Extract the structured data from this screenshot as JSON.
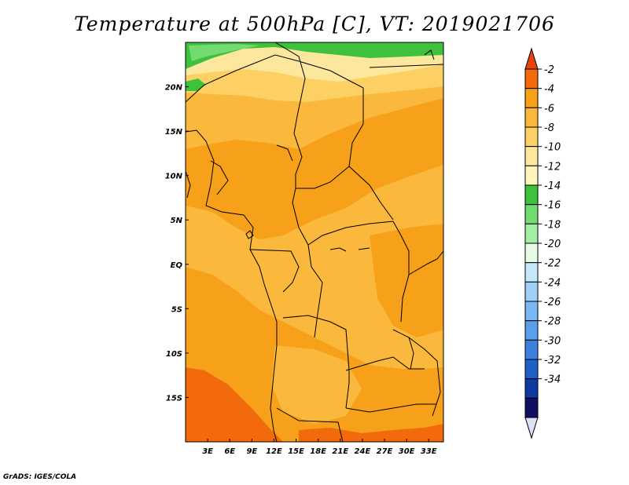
{
  "header": {
    "title": "Temperature at 500hPa [C], VT: 2019021706"
  },
  "footer": {
    "credit": "GrADS: IGES/COLA"
  },
  "chart_data": {
    "type": "heatmap",
    "title": "Temperature at 500hPa [C], VT: 2019021706",
    "x_ticks": [
      {
        "lon": 3,
        "label": "3E"
      },
      {
        "lon": 6,
        "label": "6E"
      },
      {
        "lon": 9,
        "label": "9E"
      },
      {
        "lon": 12,
        "label": "12E"
      },
      {
        "lon": 15,
        "label": "15E"
      },
      {
        "lon": 18,
        "label": "18E"
      },
      {
        "lon": 21,
        "label": "21E"
      },
      {
        "lon": 24,
        "label": "24E"
      },
      {
        "lon": 27,
        "label": "27E"
      },
      {
        "lon": 30,
        "label": "30E"
      },
      {
        "lon": 33,
        "label": "33E"
      }
    ],
    "y_ticks": [
      {
        "lat": 20,
        "label": "20N"
      },
      {
        "lat": 15,
        "label": "15N"
      },
      {
        "lat": 10,
        "label": "10N"
      },
      {
        "lat": 5,
        "label": "5N"
      },
      {
        "lat": 0,
        "label": "EQ"
      },
      {
        "lat": -5,
        "label": "5S"
      },
      {
        "lat": -10,
        "label": "10S"
      },
      {
        "lat": -15,
        "label": "15S"
      }
    ],
    "lon_range": [
      0,
      35
    ],
    "lat_range": [
      -20,
      25
    ],
    "colorbar": {
      "levels": [
        -2,
        -4,
        -6,
        -8,
        -10,
        -12,
        -14,
        -16,
        -18,
        -20,
        -22,
        -24,
        -26,
        -28,
        -30,
        -32,
        -34
      ],
      "colors": [
        "#e8420f",
        "#f26a0c",
        "#f7a01a",
        "#fab83c",
        "#fcd062",
        "#fde79c",
        "#fff5bc",
        "#3ec23e",
        "#72dc72",
        "#a2eea2",
        "#e6fae6",
        "#c6e8fb",
        "#9fd1f7",
        "#7ab8f2",
        "#5b9eea",
        "#3f80de",
        "#2060c8",
        "#103aa0",
        "#101060",
        "#e0e0f4"
      ]
    },
    "regions": [
      {
        "name": "band-north-green",
        "value": -13
      },
      {
        "name": "band-pale-yellow",
        "value": -11
      },
      {
        "name": "band-yellow",
        "value": -9
      },
      {
        "name": "background-light-orange",
        "value": -7
      },
      {
        "name": "band-medium-orange",
        "value": -5
      },
      {
        "name": "southwest-dark-orange",
        "value": -3
      }
    ]
  }
}
